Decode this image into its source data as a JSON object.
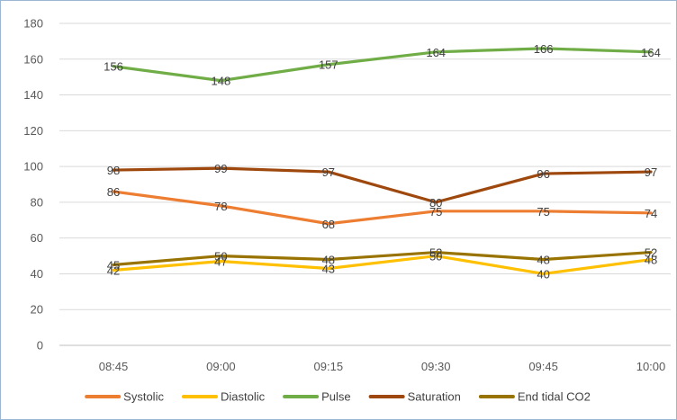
{
  "chart_data": {
    "type": "line",
    "title": "",
    "xlabel": "",
    "ylabel": "",
    "categories": [
      "08:45",
      "09:00",
      "09:15",
      "09:30",
      "09:45",
      "10:00"
    ],
    "ylim": [
      0,
      180
    ],
    "yticks": [
      0,
      20,
      40,
      60,
      80,
      100,
      120,
      140,
      160,
      180
    ],
    "ytick_labels": [
      "0",
      "20",
      "40",
      "60",
      "80",
      "100",
      "120",
      "140",
      "160",
      "180"
    ],
    "grid": true,
    "legend_position": "bottom",
    "series": [
      {
        "name": "Systolic",
        "color": "#ed7d31",
        "values": [
          86,
          78,
          68,
          75,
          75,
          74
        ],
        "labels": [
          "86",
          "78",
          "68",
          "75",
          "75",
          "74"
        ]
      },
      {
        "name": "Diastolic",
        "color": "#ffc000",
        "values": [
          42,
          47,
          43,
          50,
          40,
          48
        ],
        "labels": [
          "42",
          "47",
          "43",
          "50",
          "40",
          "48"
        ]
      },
      {
        "name": "Pulse",
        "color": "#70ad47",
        "values": [
          156,
          148,
          157,
          164,
          166,
          164
        ],
        "labels": [
          "156",
          "148",
          "157",
          "164",
          "166",
          "164"
        ]
      },
      {
        "name": "Saturation",
        "color": "#9e480e",
        "values": [
          98,
          99,
          97,
          80,
          96,
          97
        ],
        "labels": [
          "98",
          "99",
          "97",
          "80",
          "96",
          "97"
        ]
      },
      {
        "name": "End tidal CO2",
        "color": "#997300",
        "values": [
          45,
          50,
          48,
          52,
          48,
          52
        ],
        "labels": [
          "45",
          "50",
          "48",
          "52",
          "48",
          "52"
        ]
      }
    ]
  }
}
